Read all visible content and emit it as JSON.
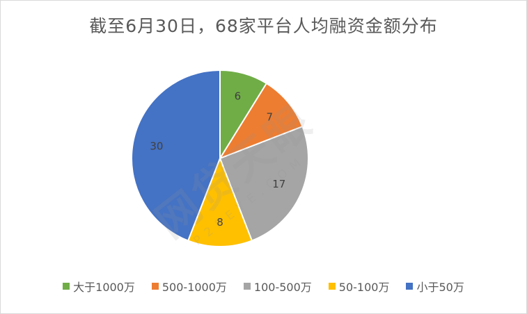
{
  "chart_data": {
    "type": "pie",
    "title": "截至6月30日，68家平台人均融资金额分布",
    "categories": [
      "大于1000万",
      "500-1000万",
      "100-500万",
      "50-100万",
      "小于50万"
    ],
    "values": [
      6,
      7,
      17,
      8,
      30
    ],
    "data_labels": [
      "6",
      "7",
      "17",
      "8",
      "30"
    ],
    "colors": [
      "#70ad47",
      "#ed7d31",
      "#a5a5a5",
      "#ffc000",
      "#4472c4"
    ],
    "legend_position": "bottom",
    "start_angle": "top, clockwise"
  },
  "watermark": {
    "main": "网贷天眼",
    "sub": "P2PEYE.COM"
  }
}
